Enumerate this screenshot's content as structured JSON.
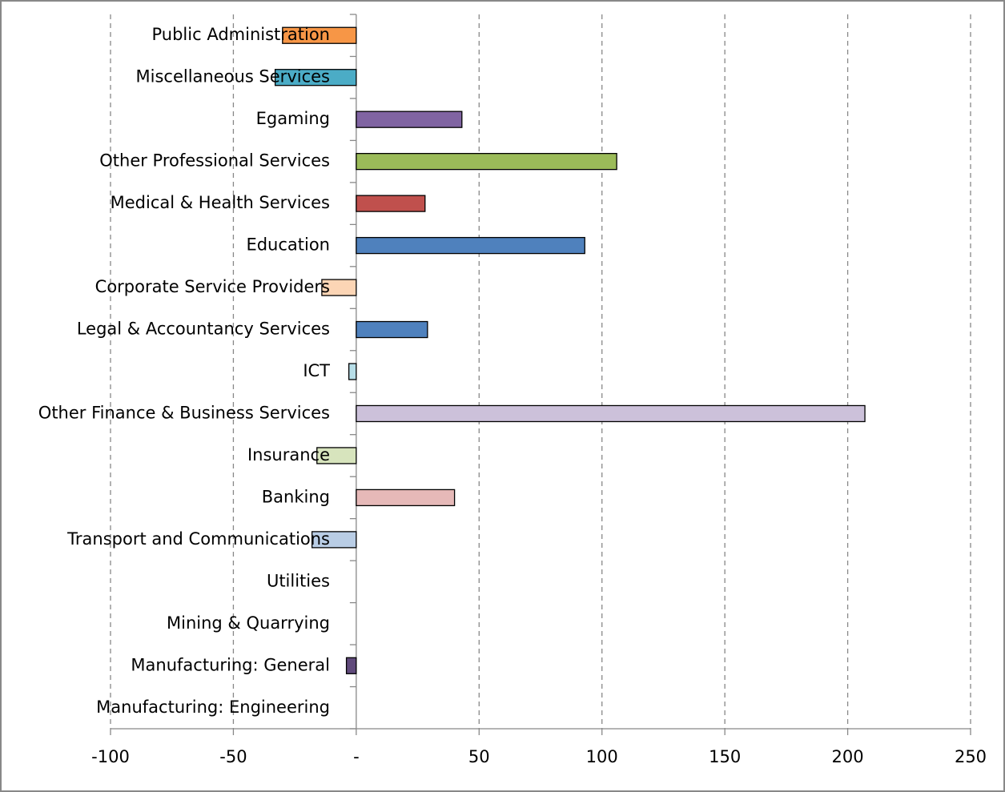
{
  "chart_data": {
    "type": "bar",
    "orientation": "horizontal",
    "categories": [
      "Public Administration",
      "Miscellaneous Services",
      "Egaming",
      "Other Professional Services",
      "Medical & Health Services",
      "Education",
      "Corporate Service Providers",
      "Legal & Accountancy Services",
      "ICT",
      "Other Finance & Business Services",
      "Insurance",
      "Banking",
      "Transport and Communications",
      "Utilities",
      "Mining & Quarrying",
      "Manufacturing: General",
      "Manufacturing: Engineering"
    ],
    "values": [
      -30,
      -33,
      43,
      106,
      28,
      93,
      -14,
      29,
      -3,
      207,
      -16,
      40,
      -18,
      0,
      0,
      -4,
      0
    ],
    "colors": [
      "#f79646",
      "#4bacc6",
      "#8064a2",
      "#9bbb59",
      "#c0504d",
      "#4f81bd",
      "#fcd5b5",
      "#4f81bd",
      "#b7dee8",
      "#ccc1da",
      "#d7e4bd",
      "#e6b9b8",
      "#b9cde5",
      "#c3d69b",
      "#93cddd",
      "#604a7b",
      "#95b3d7"
    ],
    "xlim": [
      -100,
      250
    ],
    "xticks": [
      -100,
      -50,
      {
        "value": 0,
        "label": "-"
      },
      50,
      100,
      150,
      200,
      250
    ],
    "grid": true
  }
}
